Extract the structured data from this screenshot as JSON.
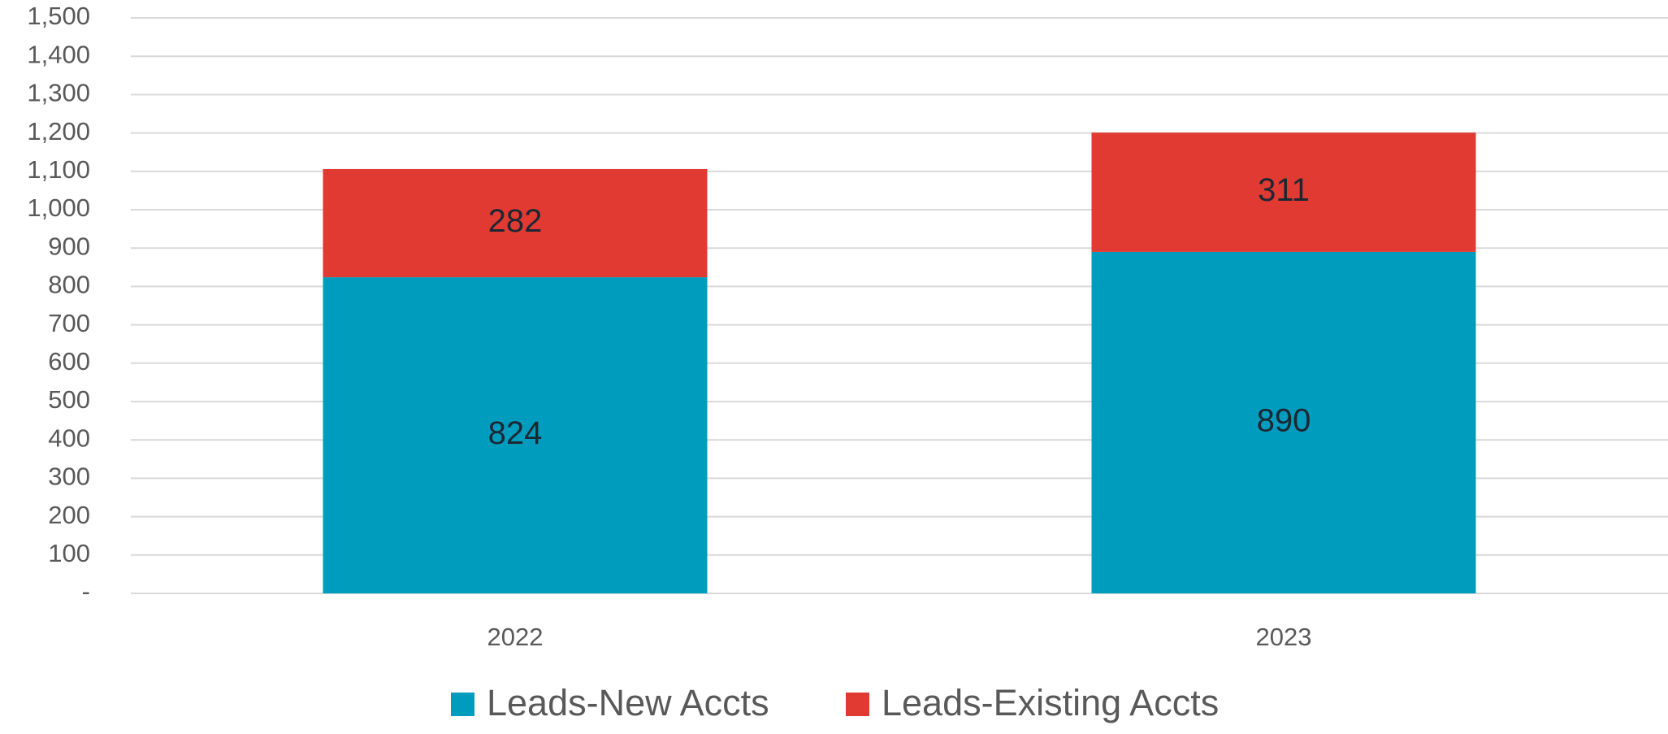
{
  "chart_data": {
    "type": "stacked_bar",
    "categories": [
      "2022",
      "2023"
    ],
    "series": [
      {
        "name": "Leads-New Accts",
        "color": "#009cbd",
        "values": [
          824,
          890
        ]
      },
      {
        "name": "Leads-Existing Accts",
        "color": "#e03a33",
        "values": [
          282,
          311
        ]
      }
    ],
    "ylim": [
      0,
      1500
    ],
    "yticks": [
      {
        "value": 0,
        "label": "-"
      },
      100,
      200,
      300,
      400,
      500,
      600,
      700,
      800,
      900,
      {
        "value": 1000,
        "label": "1,000"
      },
      {
        "value": 1100,
        "label": "1,100"
      },
      {
        "value": 1200,
        "label": "1,200"
      },
      {
        "value": 1300,
        "label": "1,300"
      },
      {
        "value": 1400,
        "label": "1,400"
      },
      {
        "value": 1500,
        "label": "1,500"
      }
    ],
    "grid": true,
    "legend": "bottom"
  }
}
